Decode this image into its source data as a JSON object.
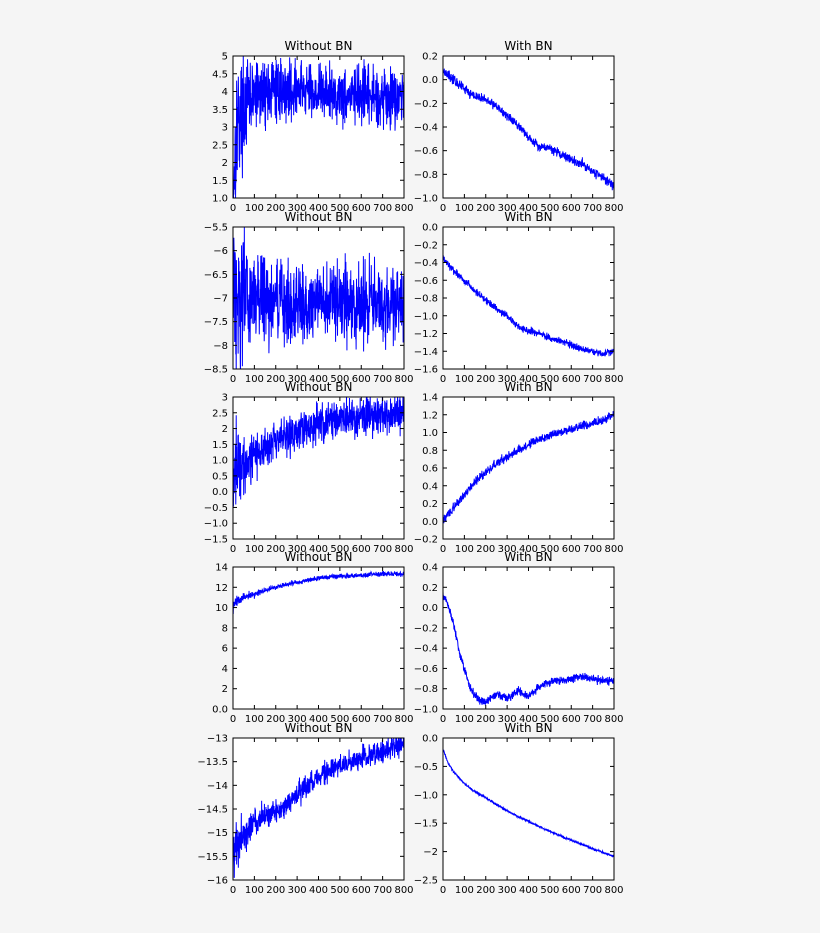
{
  "chart_data": [
    {
      "type": "line",
      "title": "Without BN",
      "xlim": [
        0,
        800
      ],
      "ylim": [
        1.0,
        5.0
      ],
      "xticks": [
        0,
        100,
        200,
        300,
        400,
        500,
        600,
        700,
        800
      ],
      "yticks": [
        1.0,
        1.5,
        2.0,
        2.5,
        3.0,
        3.5,
        4.0,
        4.5,
        5.0
      ],
      "x": [
        0,
        10,
        20,
        40,
        60,
        80,
        100,
        150,
        200,
        300,
        400,
        500,
        600,
        700,
        800
      ],
      "y": [
        1.2,
        2.5,
        3.2,
        3.4,
        3.6,
        3.8,
        3.9,
        4.0,
        4.05,
        4.05,
        4.0,
        3.9,
        3.85,
        3.85,
        3.85
      ],
      "noise_amplitude": 0.4,
      "series_color": "#0000ff"
    },
    {
      "type": "line",
      "title": "With BN",
      "xlim": [
        0,
        800
      ],
      "ylim": [
        -1.0,
        0.2
      ],
      "xticks": [
        0,
        100,
        200,
        300,
        400,
        500,
        600,
        700,
        800
      ],
      "yticks": [
        -1.0,
        -0.8,
        -0.6,
        -0.4,
        -0.2,
        0.0,
        0.2
      ],
      "x": [
        0,
        50,
        100,
        150,
        200,
        250,
        300,
        350,
        400,
        450,
        500,
        550,
        600,
        650,
        700,
        750,
        800
      ],
      "y": [
        0.08,
        0.0,
        -0.08,
        -0.14,
        -0.17,
        -0.22,
        -0.31,
        -0.38,
        -0.49,
        -0.56,
        -0.58,
        -0.63,
        -0.68,
        -0.71,
        -0.77,
        -0.83,
        -0.9
      ],
      "noise_amplitude": 0.02,
      "series_color": "#0000ff"
    },
    {
      "type": "line",
      "title": "Without BN",
      "xlim": [
        0,
        800
      ],
      "ylim": [
        -8.5,
        -5.5
      ],
      "xticks": [
        0,
        100,
        200,
        300,
        400,
        500,
        600,
        700,
        800
      ],
      "yticks": [
        -8.5,
        -8.0,
        -7.5,
        -7.0,
        -6.5,
        -6.0,
        -5.5
      ],
      "x": [
        0,
        10,
        50,
        100,
        200,
        300,
        400,
        500,
        600,
        700,
        800
      ],
      "y": [
        -6.0,
        -6.9,
        -7.0,
        -7.05,
        -7.05,
        -7.1,
        -7.1,
        -7.1,
        -7.1,
        -7.15,
        -7.15
      ],
      "noise_amplitude": 0.4,
      "series_color": "#0000ff"
    },
    {
      "type": "line",
      "title": "With BN",
      "xlim": [
        0,
        800
      ],
      "ylim": [
        -1.6,
        0.0
      ],
      "xticks": [
        0,
        100,
        200,
        300,
        400,
        500,
        600,
        700,
        800
      ],
      "yticks": [
        -1.6,
        -1.4,
        -1.2,
        -1.0,
        -0.8,
        -0.6,
        -0.4,
        -0.2,
        0.0
      ],
      "x": [
        0,
        50,
        100,
        150,
        200,
        250,
        300,
        350,
        400,
        450,
        500,
        550,
        600,
        650,
        700,
        750,
        800
      ],
      "y": [
        -0.35,
        -0.5,
        -0.6,
        -0.72,
        -0.82,
        -0.92,
        -1.0,
        -1.12,
        -1.17,
        -1.2,
        -1.25,
        -1.28,
        -1.33,
        -1.37,
        -1.4,
        -1.43,
        -1.4
      ],
      "noise_amplitude": 0.02,
      "series_color": "#0000ff"
    },
    {
      "type": "line",
      "title": "Without BN",
      "xlim": [
        0,
        800
      ],
      "ylim": [
        -1.5,
        3.0
      ],
      "xticks": [
        0,
        100,
        200,
        300,
        400,
        500,
        600,
        700,
        800
      ],
      "yticks": [
        -1.5,
        -1.0,
        -0.5,
        0.0,
        0.5,
        1.0,
        1.5,
        2.0,
        2.5,
        3.0
      ],
      "x": [
        0,
        50,
        100,
        150,
        200,
        250,
        300,
        350,
        400,
        450,
        500,
        550,
        600,
        650,
        700,
        750,
        800
      ],
      "y": [
        0.7,
        1.0,
        1.2,
        1.4,
        1.6,
        1.75,
        1.9,
        2.05,
        2.15,
        2.25,
        2.3,
        2.35,
        2.38,
        2.4,
        2.42,
        2.45,
        2.45
      ],
      "noise_amplitude": 0.3,
      "series_color": "#0000ff"
    },
    {
      "type": "line",
      "title": "With BN",
      "xlim": [
        0,
        800
      ],
      "ylim": [
        -0.2,
        1.4
      ],
      "xticks": [
        0,
        100,
        200,
        300,
        400,
        500,
        600,
        700,
        800
      ],
      "yticks": [
        -0.2,
        0.0,
        0.2,
        0.4,
        0.6,
        0.8,
        1.0,
        1.2,
        1.4
      ],
      "x": [
        0,
        25,
        50,
        100,
        150,
        200,
        250,
        300,
        350,
        400,
        450,
        500,
        550,
        600,
        650,
        700,
        750,
        800
      ],
      "y": [
        0.0,
        0.08,
        0.15,
        0.3,
        0.45,
        0.55,
        0.65,
        0.73,
        0.8,
        0.86,
        0.92,
        0.96,
        1.0,
        1.04,
        1.07,
        1.1,
        1.14,
        1.2
      ],
      "noise_amplitude": 0.025,
      "series_color": "#0000ff"
    },
    {
      "type": "line",
      "title": "Without BN",
      "xlim": [
        0,
        800
      ],
      "ylim": [
        0,
        14
      ],
      "xticks": [
        0,
        100,
        200,
        300,
        400,
        500,
        600,
        700,
        800
      ],
      "yticks": [
        0,
        2,
        4,
        6,
        8,
        10,
        12,
        14
      ],
      "x": [
        0,
        10,
        50,
        100,
        150,
        200,
        300,
        400,
        500,
        600,
        700,
        800
      ],
      "y": [
        10.0,
        10.5,
        11.0,
        11.3,
        11.7,
        12.0,
        12.5,
        12.9,
        13.1,
        13.2,
        13.3,
        13.3
      ],
      "noise_amplitude": 0.12,
      "series_color": "#0000ff"
    },
    {
      "type": "line",
      "title": "With BN",
      "xlim": [
        0,
        800
      ],
      "ylim": [
        -1.0,
        0.4
      ],
      "xticks": [
        0,
        100,
        200,
        300,
        400,
        500,
        600,
        700,
        800
      ],
      "yticks": [
        -1.0,
        -0.8,
        -0.6,
        -0.4,
        -0.2,
        0.0,
        0.2,
        0.4
      ],
      "x": [
        0,
        20,
        50,
        75,
        100,
        125,
        150,
        175,
        200,
        250,
        300,
        350,
        400,
        450,
        500,
        550,
        600,
        650,
        700,
        750,
        800
      ],
      "y": [
        0.12,
        0.05,
        -0.18,
        -0.42,
        -0.6,
        -0.78,
        -0.87,
        -0.92,
        -0.93,
        -0.85,
        -0.9,
        -0.82,
        -0.88,
        -0.78,
        -0.73,
        -0.72,
        -0.7,
        -0.68,
        -0.7,
        -0.72,
        -0.72
      ],
      "noise_amplitude": 0.02,
      "series_color": "#0000ff"
    },
    {
      "type": "line",
      "title": "Without BN",
      "xlim": [
        0,
        800
      ],
      "ylim": [
        -16.0,
        -13.0
      ],
      "xticks": [
        0,
        100,
        200,
        300,
        400,
        500,
        600,
        700,
        800
      ],
      "yticks": [
        -16.0,
        -15.5,
        -15.0,
        -14.5,
        -14.0,
        -13.5,
        -13.0
      ],
      "x": [
        0,
        50,
        100,
        150,
        200,
        250,
        300,
        350,
        400,
        450,
        500,
        550,
        600,
        650,
        700,
        750,
        800
      ],
      "y": [
        -15.4,
        -15.0,
        -14.8,
        -14.65,
        -14.55,
        -14.4,
        -14.2,
        -14.0,
        -13.85,
        -13.7,
        -13.6,
        -13.5,
        -13.4,
        -13.35,
        -13.3,
        -13.2,
        -13.15
      ],
      "noise_amplitude": 0.12,
      "series_color": "#0000ff"
    },
    {
      "type": "line",
      "title": "With BN",
      "xlim": [
        0,
        800
      ],
      "ylim": [
        -2.5,
        0.0
      ],
      "xticks": [
        0,
        100,
        200,
        300,
        400,
        500,
        600,
        700,
        800
      ],
      "yticks": [
        -2.5,
        -2.0,
        -1.5,
        -1.0,
        -0.5,
        0.0
      ],
      "x": [
        0,
        25,
        50,
        100,
        150,
        200,
        250,
        300,
        350,
        400,
        450,
        500,
        550,
        600,
        650,
        700,
        750,
        800
      ],
      "y": [
        -0.2,
        -0.45,
        -0.6,
        -0.8,
        -0.95,
        -1.05,
        -1.17,
        -1.28,
        -1.38,
        -1.47,
        -1.56,
        -1.64,
        -1.72,
        -1.8,
        -1.87,
        -1.95,
        -2.02,
        -2.08
      ],
      "noise_amplitude": 0.01,
      "series_color": "#0000ff"
    }
  ]
}
